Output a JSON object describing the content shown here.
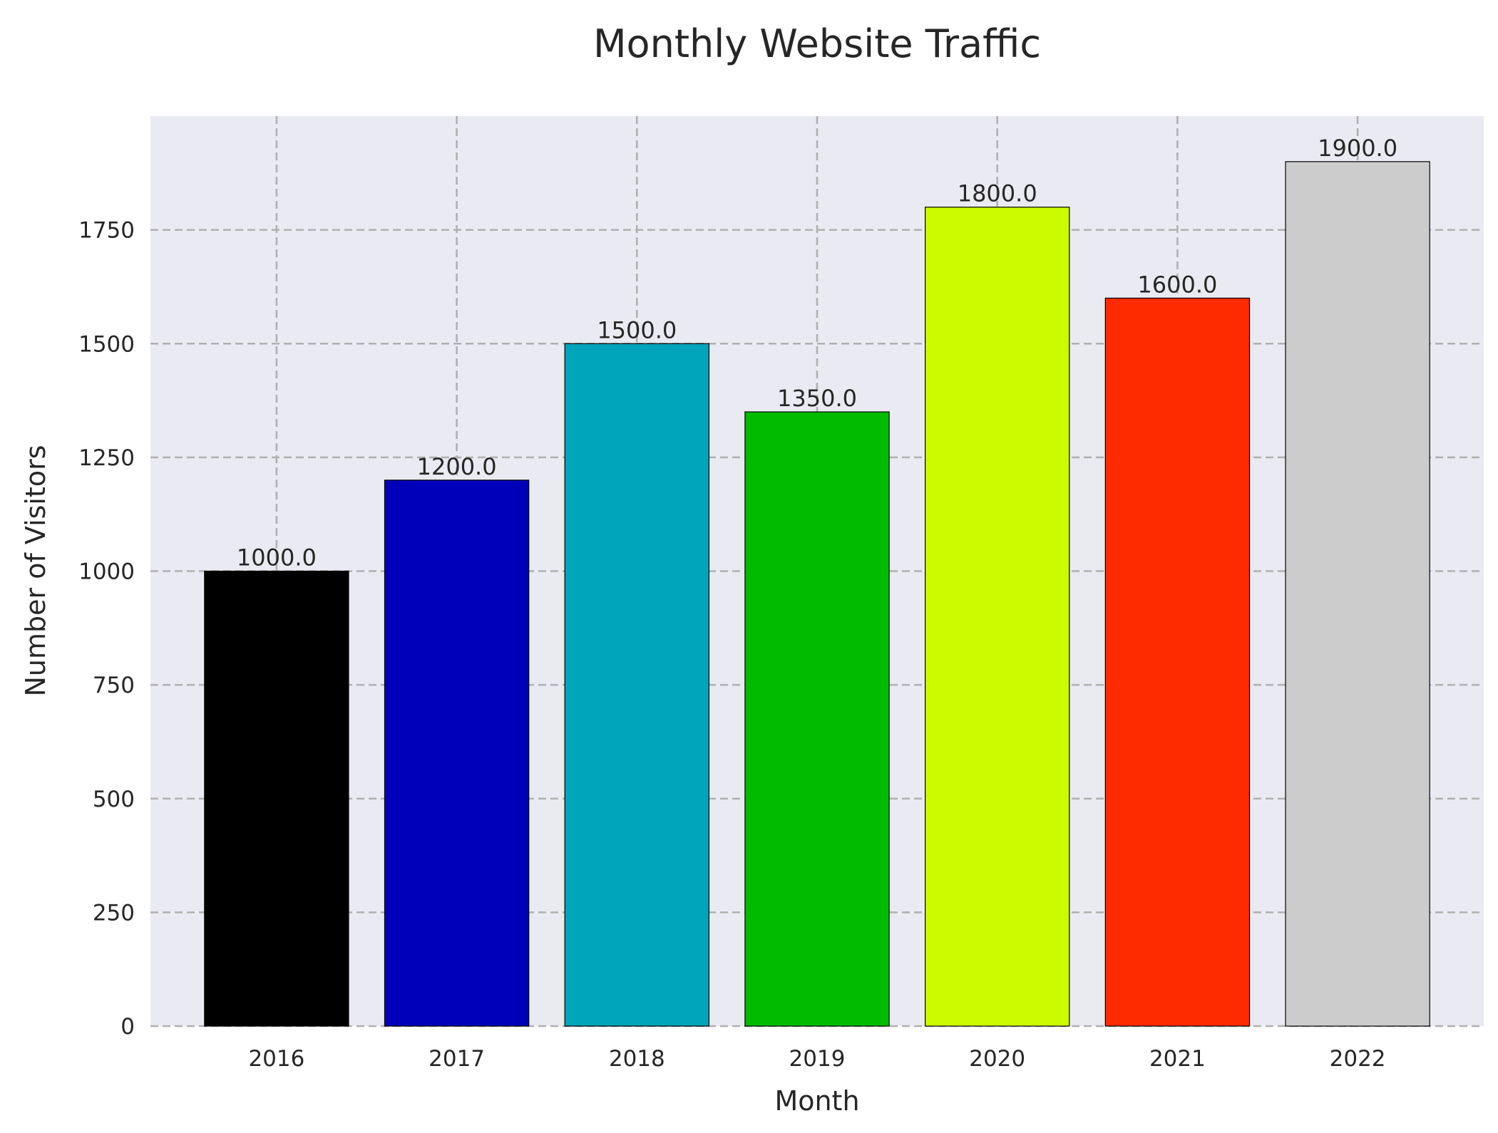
{
  "chart_data": {
    "type": "bar",
    "title": "Monthly Website Traffic",
    "xlabel": "Month",
    "ylabel": "Number of Visitors",
    "categories": [
      "2016",
      "2017",
      "2018",
      "2019",
      "2020",
      "2021",
      "2022"
    ],
    "values": [
      1000,
      1200,
      1500,
      1350,
      1800,
      1600,
      1900
    ],
    "value_labels": [
      "1000.0",
      "1200.0",
      "1500.0",
      "1350.0",
      "1800.0",
      "1600.0",
      "1900.0"
    ],
    "colors": [
      "#000000",
      "#0000bb",
      "#00a5bb",
      "#00bb00",
      "#ccfb00",
      "#ff2b00",
      "#cccccc"
    ],
    "ylim": [
      0,
      2000
    ],
    "yticks": [
      0,
      250,
      500,
      750,
      1000,
      1250,
      1500,
      1750
    ],
    "grid": true,
    "grid_style": "dashed",
    "background": "#eaeaf2"
  }
}
